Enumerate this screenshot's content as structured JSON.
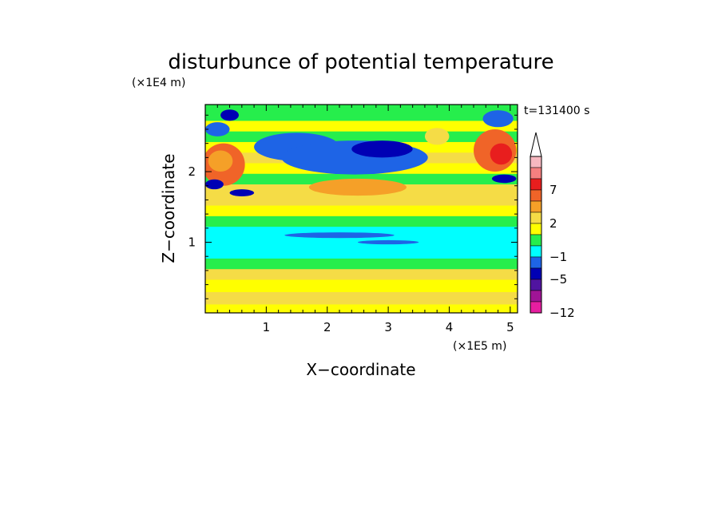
{
  "chart_data": {
    "type": "heatmap",
    "title": "disturbunce of potential temperature",
    "time_label": "t=131400 s",
    "xlabel": "X−coordinate",
    "ylabel": "Z−coordinate",
    "x_scale_label": "(×1E5 m)",
    "y_scale_label": "(×1E4 m)",
    "xlim": [
      0,
      5.12
    ],
    "ylim": [
      0,
      2.95
    ],
    "x_ticks": [
      {
        "value": 1,
        "label": "1"
      },
      {
        "value": 2,
        "label": "2"
      },
      {
        "value": 3,
        "label": "3"
      },
      {
        "value": 4,
        "label": "4"
      },
      {
        "value": 5,
        "label": "5"
      }
    ],
    "y_ticks": [
      {
        "value": 1,
        "label": "1"
      },
      {
        "value": 2,
        "label": "2"
      }
    ],
    "colorbar": {
      "levels": [
        {
          "value": 9,
          "color": "#f7b8c0"
        },
        {
          "value": 8,
          "color": "#f58080"
        },
        {
          "value": 7,
          "color": "#e81e1e"
        },
        {
          "value": 5,
          "color": "#f06428"
        },
        {
          "value": 3,
          "color": "#f5a028"
        },
        {
          "value": 2,
          "color": "#f5dc46"
        },
        {
          "value": 1,
          "color": "#ffff00"
        },
        {
          "value": 0,
          "color": "#26ee4c"
        },
        {
          "value": -1,
          "color": "#00ffff"
        },
        {
          "value": -3,
          "color": "#1e64e6"
        },
        {
          "value": -5,
          "color": "#0000b4"
        },
        {
          "value": -8,
          "color": "#5014a0"
        },
        {
          "value": -10,
          "color": "#a01496"
        },
        {
          "value": -12,
          "color": "#e61ea0"
        }
      ],
      "tick_labels": [
        {
          "value": 7,
          "label": "7"
        },
        {
          "value": 2,
          "label": "2"
        },
        {
          "value": -1,
          "label": "−1"
        },
        {
          "value": -5,
          "label": "−5"
        },
        {
          "value": -12,
          "label": "−12"
        }
      ],
      "extend": "max"
    },
    "bands": [
      {
        "z": 0.05,
        "value": 1
      },
      {
        "z": 0.2,
        "value": 2
      },
      {
        "z": 0.4,
        "value": 1
      },
      {
        "z": 0.55,
        "value": 2
      },
      {
        "z": 0.7,
        "value": 0
      },
      {
        "z": 0.85,
        "value": -1
      },
      {
        "z": 1.0,
        "value": -1
      },
      {
        "z": 1.15,
        "value": -1
      },
      {
        "z": 1.3,
        "value": 0
      },
      {
        "z": 1.45,
        "value": 1
      },
      {
        "z": 1.6,
        "value": 2
      },
      {
        "z": 1.75,
        "value": 2
      },
      {
        "z": 1.9,
        "value": 0
      },
      {
        "z": 2.05,
        "value": 1
      },
      {
        "z": 2.2,
        "value": 2
      },
      {
        "z": 2.35,
        "value": 1
      },
      {
        "z": 2.5,
        "value": 0
      },
      {
        "z": 2.65,
        "value": 1
      },
      {
        "z": 2.8,
        "value": 0
      },
      {
        "z": 2.93,
        "value": 0
      }
    ],
    "features": [
      {
        "x": 2.45,
        "z": 2.18,
        "rx": 0.95,
        "rz": 0.16,
        "value": -5
      },
      {
        "x": 1.6,
        "z": 2.38,
        "rx": 0.4,
        "rz": 0.12,
        "value": -5
      },
      {
        "x": 1.5,
        "z": 2.35,
        "rx": 0.7,
        "rz": 0.2,
        "value": -3
      },
      {
        "x": 2.45,
        "z": 2.2,
        "rx": 1.2,
        "rz": 0.24,
        "value": -3
      },
      {
        "x": 2.9,
        "z": 2.32,
        "rx": 0.5,
        "rz": 0.12,
        "value": -5
      },
      {
        "x": 0.3,
        "z": 2.1,
        "rx": 0.35,
        "rz": 0.3,
        "value": 5
      },
      {
        "x": 0.25,
        "z": 2.15,
        "rx": 0.2,
        "rz": 0.15,
        "value": 3
      },
      {
        "x": 4.75,
        "z": 2.3,
        "rx": 0.35,
        "rz": 0.3,
        "value": 5
      },
      {
        "x": 4.85,
        "z": 2.25,
        "rx": 0.18,
        "rz": 0.15,
        "value": 7
      },
      {
        "x": 2.5,
        "z": 1.78,
        "rx": 0.8,
        "rz": 0.12,
        "value": 3
      },
      {
        "x": 0.15,
        "z": 1.82,
        "rx": 0.15,
        "rz": 0.07,
        "value": -5
      },
      {
        "x": 4.9,
        "z": 1.9,
        "rx": 0.2,
        "rz": 0.06,
        "value": -5
      },
      {
        "x": 0.6,
        "z": 1.7,
        "rx": 0.2,
        "rz": 0.05,
        "value": -5
      },
      {
        "x": 2.2,
        "z": 1.1,
        "rx": 0.9,
        "rz": 0.04,
        "value": -3
      },
      {
        "x": 3.0,
        "z": 1.0,
        "rx": 0.5,
        "rz": 0.03,
        "value": -3
      },
      {
        "x": 0.4,
        "z": 2.8,
        "rx": 0.15,
        "rz": 0.08,
        "value": -5
      },
      {
        "x": 4.8,
        "z": 2.75,
        "rx": 0.25,
        "rz": 0.12,
        "value": -3
      },
      {
        "x": 3.8,
        "z": 2.5,
        "rx": 0.2,
        "rz": 0.12,
        "value": 2
      },
      {
        "x": 0.2,
        "z": 2.6,
        "rx": 0.2,
        "rz": 0.1,
        "value": -3
      }
    ]
  }
}
